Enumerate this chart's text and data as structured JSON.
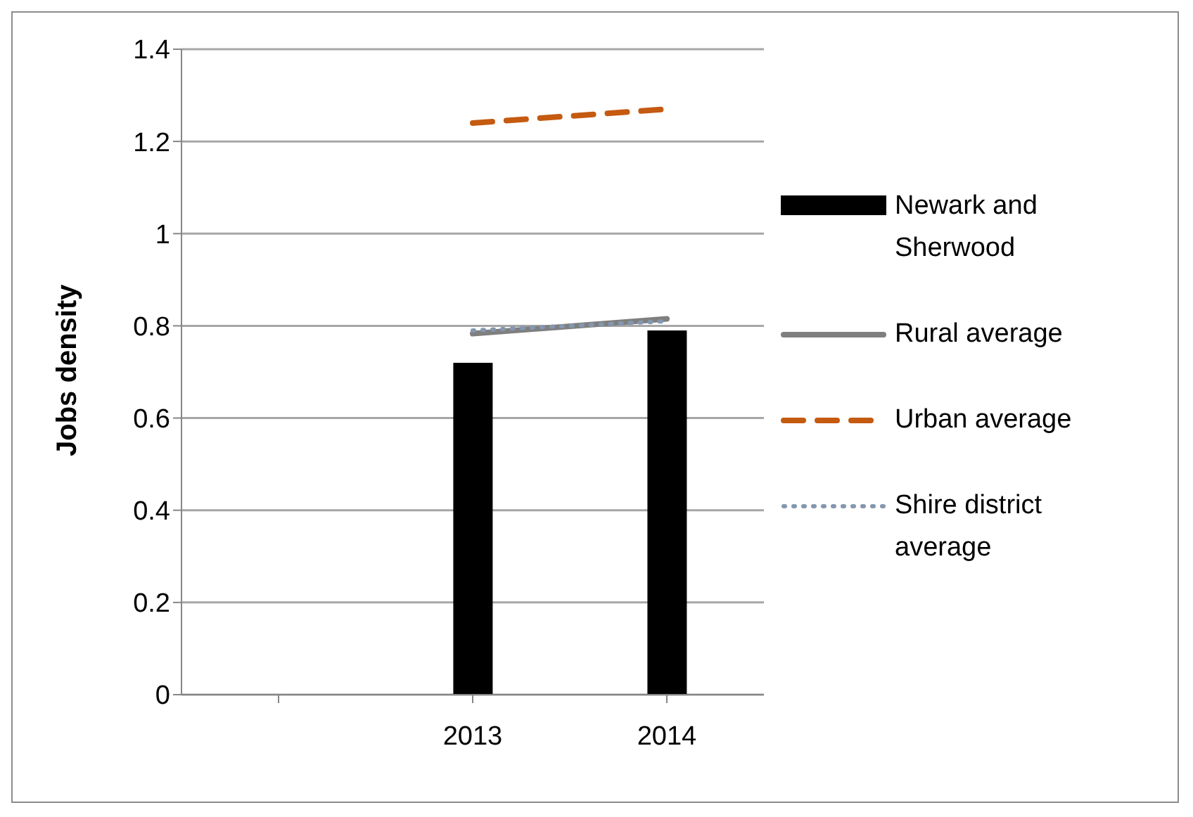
{
  "chart_data": {
    "type": "bar",
    "ylabel": "Jobs density",
    "categories": [
      null,
      "2013",
      "2014"
    ],
    "series": [
      {
        "name": "Newark and Sherwood",
        "color": "#000000",
        "values": [
          null,
          0.72,
          0.79
        ]
      },
      {
        "name": "Rural average",
        "type": "line",
        "color": "#7f7f7f",
        "line_style": "solid",
        "values": [
          null,
          0.783,
          0.815
        ]
      },
      {
        "name": "Urban average",
        "type": "line",
        "color": "#c55a11",
        "line_style": "dashed",
        "values": [
          null,
          1.24,
          1.27
        ]
      },
      {
        "name": "Shire district average",
        "type": "line",
        "color": "#8497b0",
        "line_style": "dotted",
        "values": [
          null,
          0.79,
          0.81
        ]
      }
    ],
    "ylim": [
      0,
      1.4
    ],
    "yticks": [
      0,
      0.2,
      0.4,
      0.6,
      0.8,
      1,
      1.2,
      1.4
    ],
    "grid": "y",
    "legend": "right",
    "marker": "none"
  }
}
